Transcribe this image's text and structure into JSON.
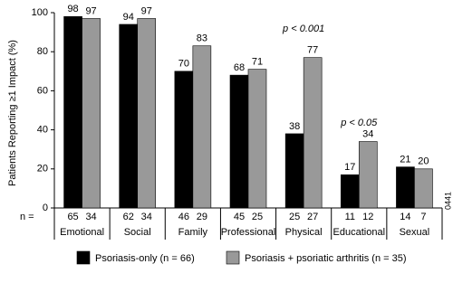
{
  "chart_data": {
    "type": "bar",
    "y_label": "Patients Reporting ≥1 Impact (%)",
    "categories": [
      "Emotional",
      "Social",
      "Family",
      "Professional",
      "Physical",
      "Educational",
      "Sexual"
    ],
    "series": [
      {
        "name": "Psoriasis-only (n = 66)",
        "color": "#000000",
        "values": [
          98,
          94,
          70,
          68,
          38,
          17,
          21
        ],
        "n": [
          65,
          62,
          46,
          45,
          25,
          11,
          14
        ]
      },
      {
        "name": "Psoriasis + psoriatic arthritis (n = 35)",
        "color": "#999999",
        "values": [
          97,
          97,
          83,
          71,
          77,
          34,
          20
        ],
        "n": [
          34,
          34,
          29,
          25,
          27,
          12,
          7
        ]
      }
    ],
    "n_label": "n =",
    "annotations": [
      "p < 0.001",
      "p < 0.05"
    ],
    "figure_code": "0441",
    "ylim": [
      0,
      100
    ],
    "yticks": [
      0,
      20,
      40,
      60,
      80,
      100
    ]
  }
}
